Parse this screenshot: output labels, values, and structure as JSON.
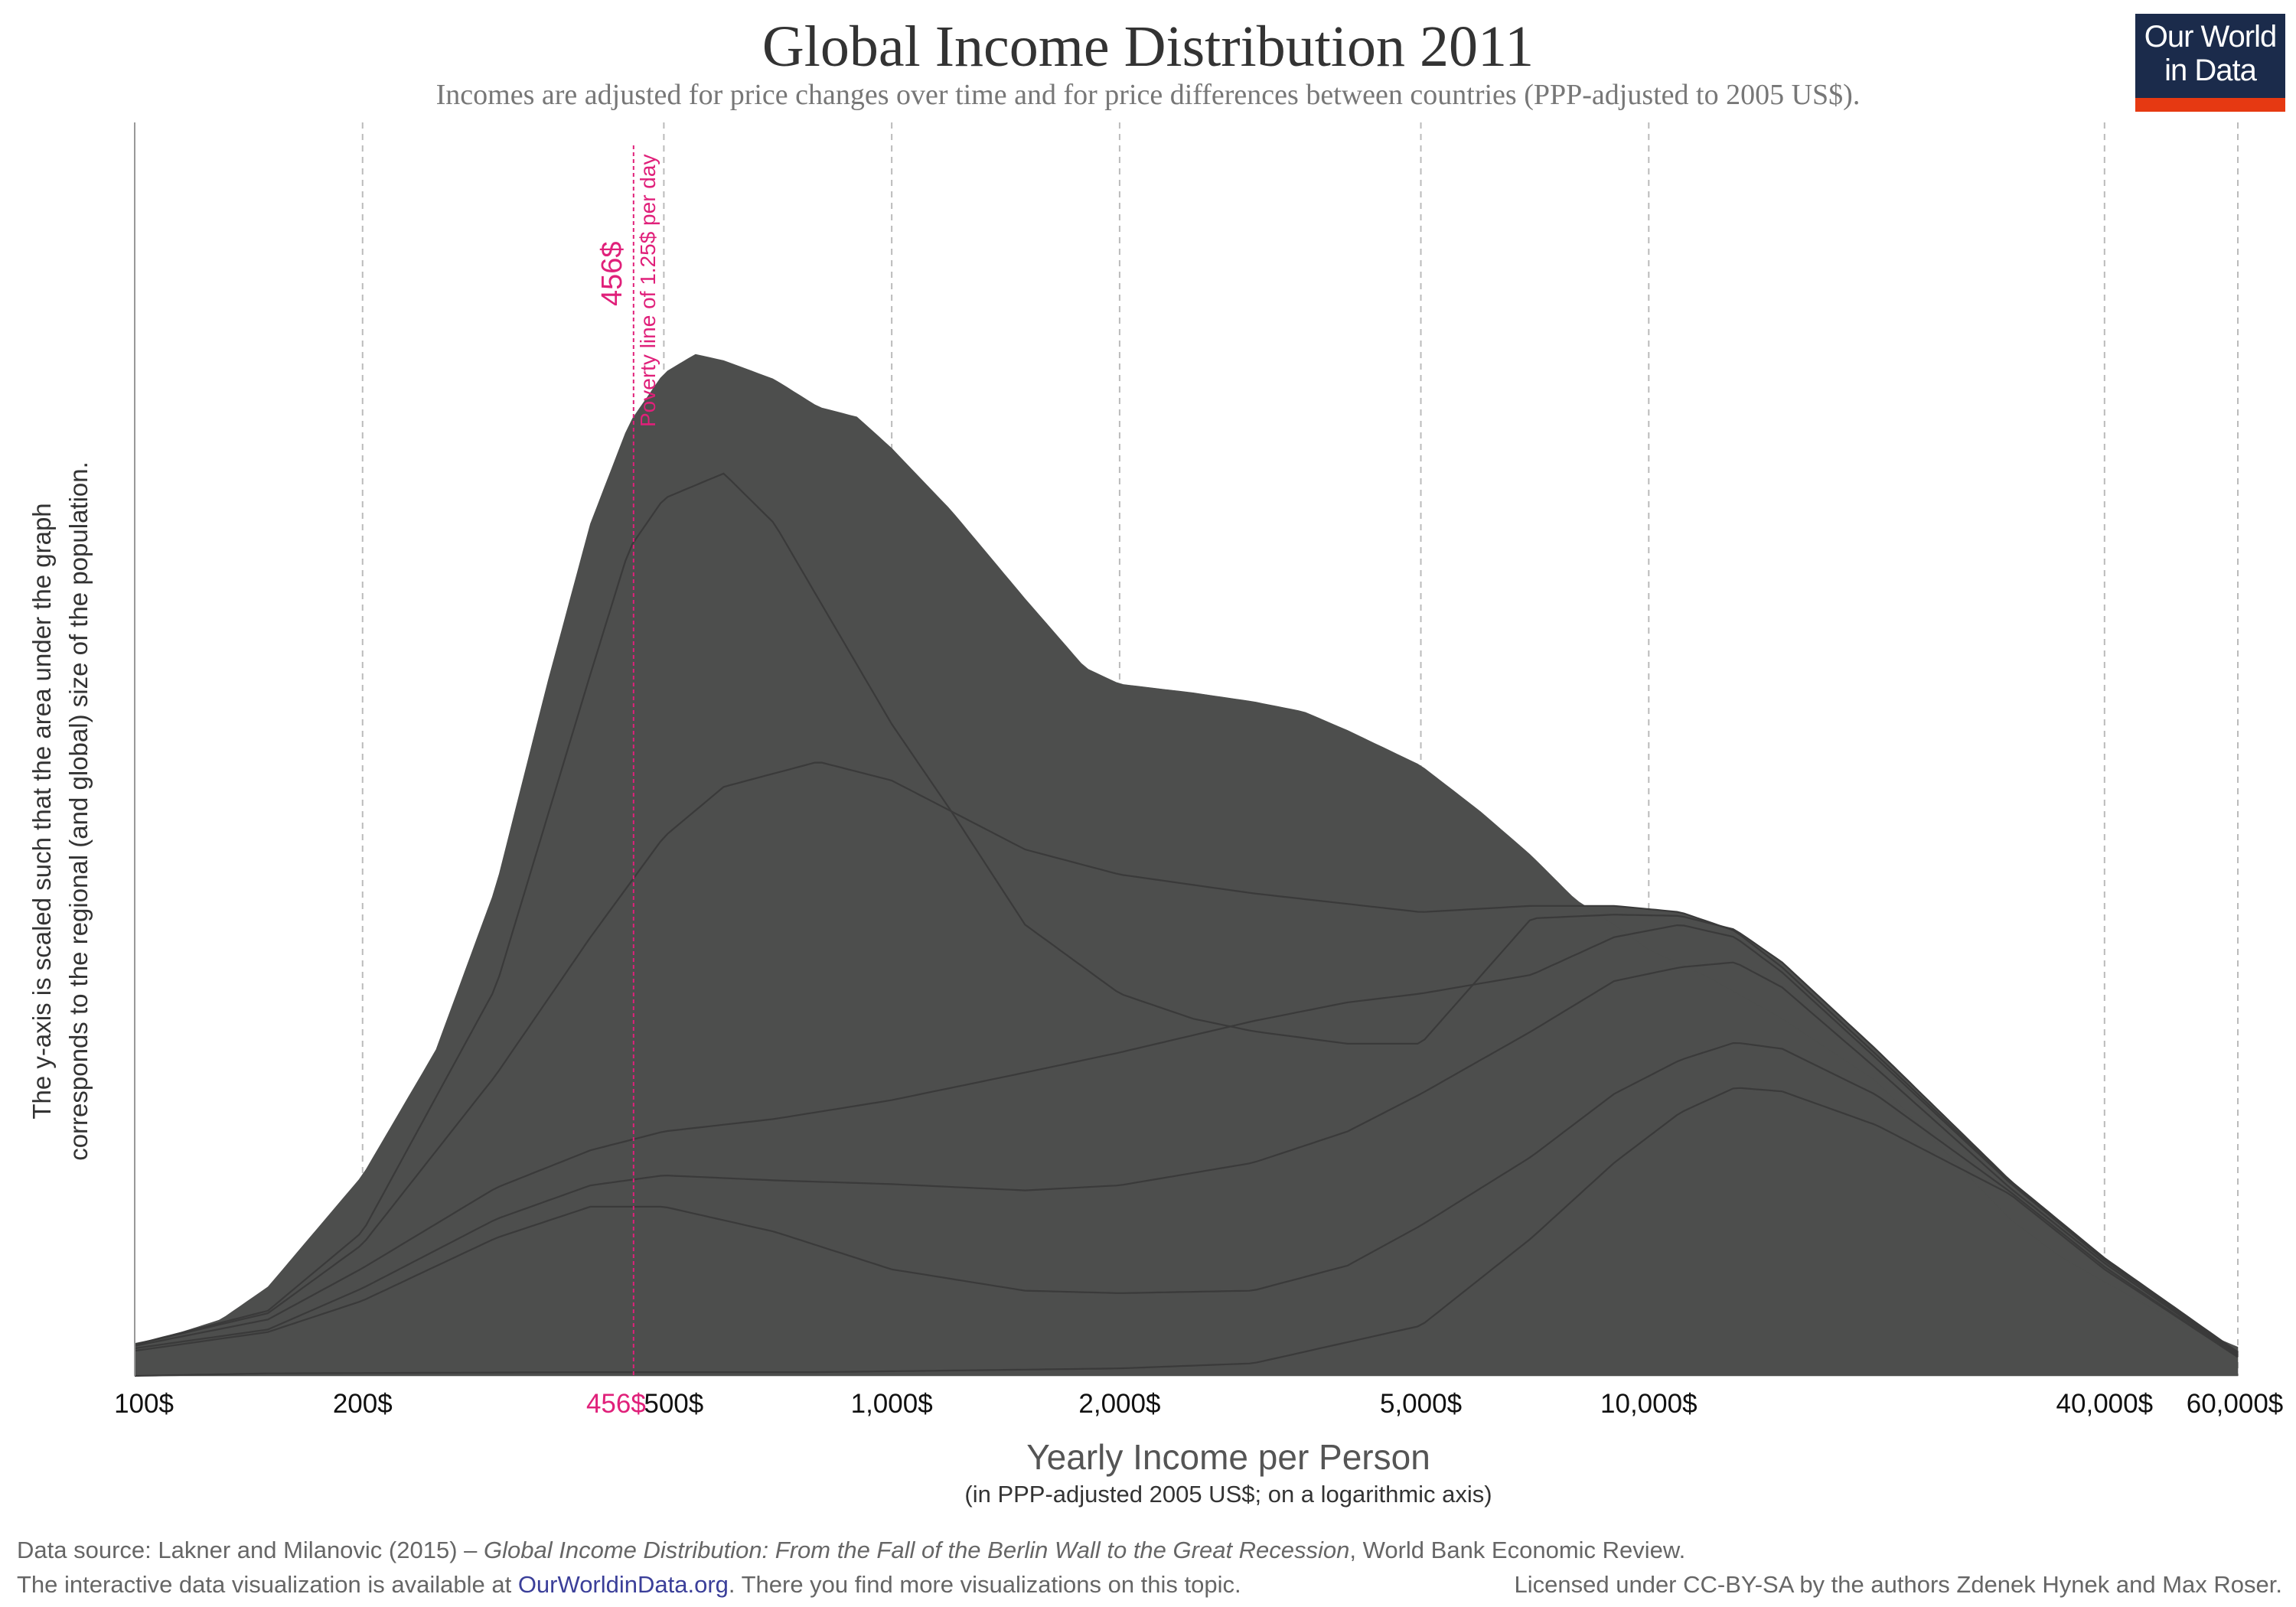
{
  "title": "Global Income Distribution 2011",
  "subtitle": "Incomes are adjusted for price changes over time and for price differences between countries (PPP-adjusted to 2005 US$).",
  "logo": {
    "line1": "Our World",
    "line2": "in Data"
  },
  "colors": {
    "area": "#4d4e4d",
    "line": "#3a3a3a",
    "poverty": "#e0207a",
    "grid": "#bbbbbb",
    "axis": "#999999",
    "logo_bg": "#1b2b4b",
    "logo_bar": "#e63912",
    "link": "#3b3f99"
  },
  "chart_data": {
    "type": "area",
    "title": "Global Income Distribution 2011",
    "xlabel": "Yearly Income per Person",
    "xlabel_note": "(in PPP-adjusted 2005 US$; on a logarithmic axis)",
    "ylabel_line1": "The y-axis is scaled such that the area under the graph",
    "ylabel_line2": "corresponds to the regional (and global) size of the population.",
    "x_scale": "log",
    "xlim": [
      100,
      60000
    ],
    "ylim": [
      0,
      100
    ],
    "y_ticks_shown": false,
    "grid": "vertical dashed",
    "x_ticks": [
      {
        "value": 100,
        "label": "100$"
      },
      {
        "value": 200,
        "label": "200$"
      },
      {
        "value": 500,
        "label": "500$"
      },
      {
        "value": 1000,
        "label": "1,000$"
      },
      {
        "value": 2000,
        "label": "2,000$"
      },
      {
        "value": 5000,
        "label": "5,000$"
      },
      {
        "value": 10000,
        "label": "10,000$"
      },
      {
        "value": 40000,
        "label": "40,000$"
      },
      {
        "value": 60000,
        "label": "60,000$"
      }
    ],
    "poverty_line": {
      "value": 456,
      "label": "456$",
      "tick_label": "456$",
      "note": "Poverty line of 1.25$ per day"
    },
    "stack_boundaries": [
      {
        "points": [
          [
            100,
            0
          ],
          [
            60000,
            0
          ]
        ]
      },
      {
        "points": [
          [
            100,
            0
          ],
          [
            150,
            0.2
          ],
          [
            400,
            0.3
          ],
          [
            800,
            0.3
          ],
          [
            1500,
            0.5
          ],
          [
            2000,
            0.6
          ],
          [
            3000,
            1
          ],
          [
            5000,
            4
          ],
          [
            7000,
            11
          ],
          [
            9000,
            17
          ],
          [
            11000,
            21
          ],
          [
            13000,
            23
          ],
          [
            15000,
            22.7
          ],
          [
            20000,
            20
          ],
          [
            30000,
            14.5
          ],
          [
            40000,
            8.5
          ],
          [
            60000,
            1.5
          ]
        ]
      },
      {
        "points": [
          [
            100,
            2
          ],
          [
            150,
            3.5
          ],
          [
            200,
            6
          ],
          [
            300,
            11
          ],
          [
            400,
            13.5
          ],
          [
            500,
            13.5
          ],
          [
            700,
            11.5
          ],
          [
            1000,
            8.5
          ],
          [
            1500,
            6.8
          ],
          [
            2000,
            6.6
          ],
          [
            3000,
            6.8
          ],
          [
            4000,
            8.8
          ],
          [
            5000,
            12
          ],
          [
            7000,
            17.5
          ],
          [
            9000,
            22.5
          ],
          [
            11000,
            25.2
          ],
          [
            13000,
            26.6
          ],
          [
            15000,
            26.1
          ],
          [
            20000,
            22.4
          ],
          [
            30000,
            14.7
          ],
          [
            40000,
            8.7
          ],
          [
            60000,
            1.5
          ]
        ]
      },
      {
        "points": [
          [
            100,
            2.2
          ],
          [
            150,
            3.7
          ],
          [
            200,
            7
          ],
          [
            300,
            12.5
          ],
          [
            400,
            15.2
          ],
          [
            500,
            16
          ],
          [
            700,
            15.6
          ],
          [
            1000,
            15.3
          ],
          [
            1500,
            14.8
          ],
          [
            2000,
            15.2
          ],
          [
            3000,
            17
          ],
          [
            4000,
            19.5
          ],
          [
            5000,
            22.5
          ],
          [
            7000,
            27.5
          ],
          [
            9000,
            31.5
          ],
          [
            11000,
            32.6
          ],
          [
            13000,
            33
          ],
          [
            15000,
            31
          ],
          [
            20000,
            24.5
          ],
          [
            30000,
            15
          ],
          [
            40000,
            9
          ],
          [
            60000,
            1.6
          ]
        ]
      },
      {
        "points": [
          [
            100,
            2.4
          ],
          [
            150,
            4.5
          ],
          [
            200,
            8.6
          ],
          [
            300,
            15
          ],
          [
            400,
            18
          ],
          [
            500,
            19.5
          ],
          [
            700,
            20.5
          ],
          [
            1000,
            22
          ],
          [
            1500,
            24.2
          ],
          [
            2000,
            25.8
          ],
          [
            3000,
            28.3
          ],
          [
            4000,
            29.8
          ],
          [
            5000,
            30.5
          ],
          [
            7000,
            32
          ],
          [
            9000,
            35
          ],
          [
            11000,
            36
          ],
          [
            13000,
            35
          ],
          [
            15000,
            32.2
          ],
          [
            20000,
            25.3
          ],
          [
            30000,
            15.4
          ],
          [
            40000,
            9.2
          ],
          [
            60000,
            1.7
          ]
        ]
      },
      {
        "points": [
          [
            100,
            2.5
          ],
          [
            150,
            5
          ],
          [
            200,
            10.5
          ],
          [
            300,
            24
          ],
          [
            400,
            35
          ],
          [
            500,
            43
          ],
          [
            600,
            47
          ],
          [
            800,
            49
          ],
          [
            1000,
            47.5
          ],
          [
            1500,
            42
          ],
          [
            2000,
            40
          ],
          [
            3000,
            38.5
          ],
          [
            5000,
            37
          ],
          [
            7000,
            37.5
          ],
          [
            9000,
            37.5
          ],
          [
            11000,
            37
          ],
          [
            13000,
            35.5
          ],
          [
            15000,
            32.6
          ],
          [
            20000,
            25.6
          ],
          [
            30000,
            15.5
          ],
          [
            40000,
            9.3
          ],
          [
            60000,
            1.8
          ]
        ]
      },
      {
        "points": [
          [
            100,
            2.5
          ],
          [
            150,
            5.2
          ],
          [
            200,
            11.5
          ],
          [
            300,
            31
          ],
          [
            400,
            56
          ],
          [
            450,
            66
          ],
          [
            500,
            70
          ],
          [
            600,
            72
          ],
          [
            700,
            68
          ],
          [
            800,
            62
          ],
          [
            1000,
            52
          ],
          [
            1200,
            45
          ],
          [
            1500,
            36
          ],
          [
            2000,
            30.5
          ],
          [
            2500,
            28.5
          ],
          [
            3000,
            27.5
          ],
          [
            4000,
            26.5
          ],
          [
            5000,
            26.5
          ],
          [
            7000,
            36.5
          ],
          [
            9000,
            36.8
          ],
          [
            11000,
            36.7
          ],
          [
            13000,
            35.6
          ],
          [
            15000,
            33
          ],
          [
            20000,
            26
          ],
          [
            30000,
            15.6
          ],
          [
            40000,
            9.4
          ],
          [
            60000,
            1.9
          ]
        ]
      },
      {
        "points": [
          [
            100,
            2.6
          ],
          [
            110,
            3.1
          ],
          [
            130,
            4.5
          ],
          [
            150,
            7.1
          ],
          [
            200,
            16
          ],
          [
            250,
            26
          ],
          [
            300,
            39
          ],
          [
            350,
            55
          ],
          [
            400,
            68
          ],
          [
            450,
            76
          ],
          [
            500,
            80
          ],
          [
            550,
            81.5
          ],
          [
            600,
            81
          ],
          [
            700,
            79.5
          ],
          [
            800,
            77.3
          ],
          [
            900,
            76.5
          ],
          [
            1000,
            74
          ],
          [
            1200,
            69
          ],
          [
            1500,
            62
          ],
          [
            1800,
            56.5
          ],
          [
            2000,
            55.2
          ],
          [
            2500,
            54.5
          ],
          [
            3000,
            53.8
          ],
          [
            3500,
            53
          ],
          [
            4000,
            51.5
          ],
          [
            5000,
            48.7
          ],
          [
            6000,
            45
          ],
          [
            7000,
            41.5
          ],
          [
            8000,
            38
          ],
          [
            9000,
            36
          ],
          [
            10000,
            34
          ],
          [
            12000,
            31.8
          ],
          [
            13000,
            30.6
          ],
          [
            15000,
            28.5
          ],
          [
            20000,
            23.5
          ],
          [
            25000,
            17.5
          ],
          [
            30000,
            12.5
          ],
          [
            35000,
            9.5
          ],
          [
            40000,
            7.5
          ],
          [
            50000,
            4.3
          ],
          [
            60000,
            2.3
          ]
        ]
      }
    ]
  },
  "footer": {
    "source_prefix": "Data source: Lakner and Milanovic (2015) – ",
    "source_title": "Global Income Distribution: From the Fall of the Berlin Wall to the Great Recession",
    "source_suffix": ", World Bank Economic Review.",
    "interactive_prefix": "The interactive data visualization is available at ",
    "interactive_link": "OurWorldinData.org",
    "interactive_suffix": ". There you find more visualizations on this topic.",
    "license_prefix": "Licensed under ",
    "license_link": "CC-BY-SA",
    "license_suffix": " by the authors Zdenek Hynek and Max Roser."
  }
}
